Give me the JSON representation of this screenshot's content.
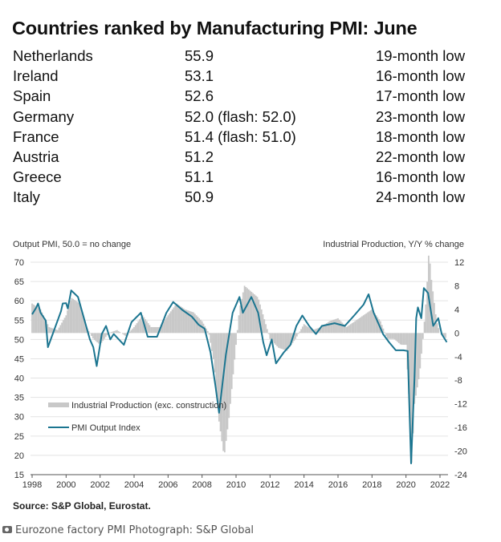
{
  "title": "Countries ranked by Manufacturing PMI: June",
  "table": [
    {
      "country": "Netherlands",
      "value": "55.9",
      "note": "19-month low"
    },
    {
      "country": "Ireland",
      "value": "53.1",
      "note": "16-month low"
    },
    {
      "country": "Spain",
      "value": "52.6",
      "note": "17-month low"
    },
    {
      "country": "Germany",
      "value": "52.0 (flash: 52.0)",
      "note": "23-month low"
    },
    {
      "country": "France",
      "value": "51.4 (flash: 51.0)",
      "note": "18-month low"
    },
    {
      "country": "Austria",
      "value": "51.2",
      "note": "22-month low"
    },
    {
      "country": "Greece",
      "value": "51.1",
      "note": "16-month low"
    },
    {
      "country": "Italy",
      "value": "50.9",
      "note": "24-month low"
    }
  ],
  "chart_data": {
    "type": "line+bar",
    "ylabel_left": "Output PMI, 50.0 = no change",
    "ylabel_right": "Industrial Production, Y/Y % change",
    "ylim_left": [
      15,
      70
    ],
    "ylim_right": [
      -24,
      12
    ],
    "left_ticks": [
      "70",
      "65",
      "60",
      "55",
      "50",
      "45",
      "40",
      "35",
      "30",
      "25",
      "20",
      "15"
    ],
    "right_ticks": [
      "12",
      "8",
      "4",
      "0",
      "-4",
      "-8",
      "-12",
      "-16",
      "-20",
      "-24"
    ],
    "x_ticks": [
      "1998",
      "2000",
      "2002",
      "2004",
      "2006",
      "2008",
      "2010",
      "2012",
      "2014",
      "2016",
      "2018",
      "2020",
      "2022"
    ],
    "xlim": [
      1998,
      2022.6
    ],
    "grid": true,
    "legend_position": "left-lower",
    "colors": {
      "pmi": "#1b7590",
      "ip": "#c8c8c8"
    },
    "series": [
      {
        "name": "Industrial Production (exc. construction)",
        "axis": "right",
        "kind": "bar",
        "points": [
          [
            1998.0,
            5
          ],
          [
            1998.5,
            4
          ],
          [
            1999.0,
            1
          ],
          [
            1999.5,
            0.5
          ],
          [
            2000.0,
            3
          ],
          [
            2000.3,
            6
          ],
          [
            2000.8,
            5
          ],
          [
            2001.2,
            1
          ],
          [
            2001.6,
            -1
          ],
          [
            2002.0,
            -2
          ],
          [
            2002.5,
            0
          ],
          [
            2003.0,
            0.5
          ],
          [
            2003.5,
            -0.5
          ],
          [
            2004.0,
            1
          ],
          [
            2004.5,
            3
          ],
          [
            2005.0,
            1
          ],
          [
            2005.5,
            1
          ],
          [
            2006.0,
            3
          ],
          [
            2006.5,
            5
          ],
          [
            2007.0,
            4
          ],
          [
            2007.5,
            3.5
          ],
          [
            2008.0,
            2
          ],
          [
            2008.4,
            0
          ],
          [
            2008.7,
            -5
          ],
          [
            2009.0,
            -15
          ],
          [
            2009.3,
            -21
          ],
          [
            2009.6,
            -14
          ],
          [
            2009.9,
            -5
          ],
          [
            2010.2,
            4
          ],
          [
            2010.5,
            8
          ],
          [
            2010.9,
            7
          ],
          [
            2011.3,
            6
          ],
          [
            2011.7,
            2
          ],
          [
            2012.0,
            -1
          ],
          [
            2012.5,
            -2.5
          ],
          [
            2013.0,
            -3
          ],
          [
            2013.5,
            -1
          ],
          [
            2014.0,
            1.5
          ],
          [
            2014.5,
            0.5
          ],
          [
            2015.0,
            1
          ],
          [
            2015.5,
            2
          ],
          [
            2016.0,
            2.5
          ],
          [
            2016.5,
            1
          ],
          [
            2017.0,
            2
          ],
          [
            2017.5,
            3
          ],
          [
            2018.0,
            4
          ],
          [
            2018.5,
            2
          ],
          [
            2018.9,
            -1
          ],
          [
            2019.3,
            -1
          ],
          [
            2019.7,
            -2
          ],
          [
            2020.0,
            -2
          ],
          [
            2020.2,
            -12
          ],
          [
            2020.3,
            -24
          ],
          [
            2020.5,
            -12
          ],
          [
            2020.8,
            -7
          ],
          [
            2021.0,
            -1
          ],
          [
            2021.2,
            6
          ],
          [
            2021.35,
            14
          ],
          [
            2021.5,
            9
          ],
          [
            2021.8,
            2
          ],
          [
            2022.0,
            0
          ],
          [
            2022.4,
            -1
          ]
        ]
      },
      {
        "name": "PMI Output Index",
        "axis": "left",
        "kind": "line",
        "points": [
          [
            1998.0,
            56.5
          ],
          [
            1998.25,
            58.3
          ],
          [
            1998.35,
            59.3
          ],
          [
            1998.5,
            56.9
          ],
          [
            1998.8,
            54.9
          ],
          [
            1998.93,
            48
          ],
          [
            1999.7,
            57.3
          ],
          [
            1999.8,
            59.3
          ],
          [
            2000.0,
            59.4
          ],
          [
            2000.1,
            58
          ],
          [
            2000.3,
            62.7
          ],
          [
            2000.7,
            61
          ],
          [
            2001.05,
            55.5
          ],
          [
            2001.4,
            50
          ],
          [
            2001.6,
            48
          ],
          [
            2001.8,
            43.1
          ],
          [
            2002.1,
            51.4
          ],
          [
            2002.35,
            53.5
          ],
          [
            2002.6,
            50
          ],
          [
            2002.8,
            51.4
          ],
          [
            2003.4,
            48.6
          ],
          [
            2003.85,
            54.5
          ],
          [
            2004.4,
            56.9
          ],
          [
            2004.8,
            50.7
          ],
          [
            2005.35,
            50.7
          ],
          [
            2005.9,
            56.9
          ],
          [
            2006.3,
            59.7
          ],
          [
            2006.85,
            57.6
          ],
          [
            2007.4,
            55.9
          ],
          [
            2007.8,
            53.8
          ],
          [
            2008.15,
            52.8
          ],
          [
            2008.5,
            46.6
          ],
          [
            2008.8,
            37.6
          ],
          [
            2009.0,
            31
          ],
          [
            2009.4,
            46
          ],
          [
            2009.8,
            56.9
          ],
          [
            2010.2,
            61
          ],
          [
            2010.4,
            56.9
          ],
          [
            2010.9,
            61
          ],
          [
            2011.3,
            56.9
          ],
          [
            2011.6,
            49.3
          ],
          [
            2011.8,
            45.9
          ],
          [
            2012.1,
            50
          ],
          [
            2012.35,
            43.8
          ],
          [
            2012.8,
            46.6
          ],
          [
            2013.2,
            48.6
          ],
          [
            2013.55,
            53.5
          ],
          [
            2013.9,
            56.2
          ],
          [
            2014.3,
            53.5
          ],
          [
            2014.7,
            51.4
          ],
          [
            2015.05,
            53.5
          ],
          [
            2015.8,
            54.2
          ],
          [
            2016.4,
            53.5
          ],
          [
            2016.95,
            56.2
          ],
          [
            2017.5,
            59
          ],
          [
            2017.8,
            61.7
          ],
          [
            2018.1,
            56.9
          ],
          [
            2018.65,
            51.4
          ],
          [
            2019.0,
            49.3
          ],
          [
            2019.4,
            47.2
          ],
          [
            2019.85,
            47.2
          ],
          [
            2020.1,
            47
          ],
          [
            2020.3,
            17.9
          ],
          [
            2020.5,
            40
          ],
          [
            2020.6,
            55.5
          ],
          [
            2020.7,
            58.3
          ],
          [
            2020.9,
            55.5
          ],
          [
            2021.05,
            63.3
          ],
          [
            2021.3,
            62
          ],
          [
            2021.6,
            53.5
          ],
          [
            2021.9,
            55.5
          ],
          [
            2022.1,
            51.4
          ],
          [
            2022.4,
            49.3
          ]
        ]
      }
    ]
  },
  "source": "Source: S&P Global, Eurostat.",
  "caption": "Eurozone factory PMI Photograph: S&P Global"
}
